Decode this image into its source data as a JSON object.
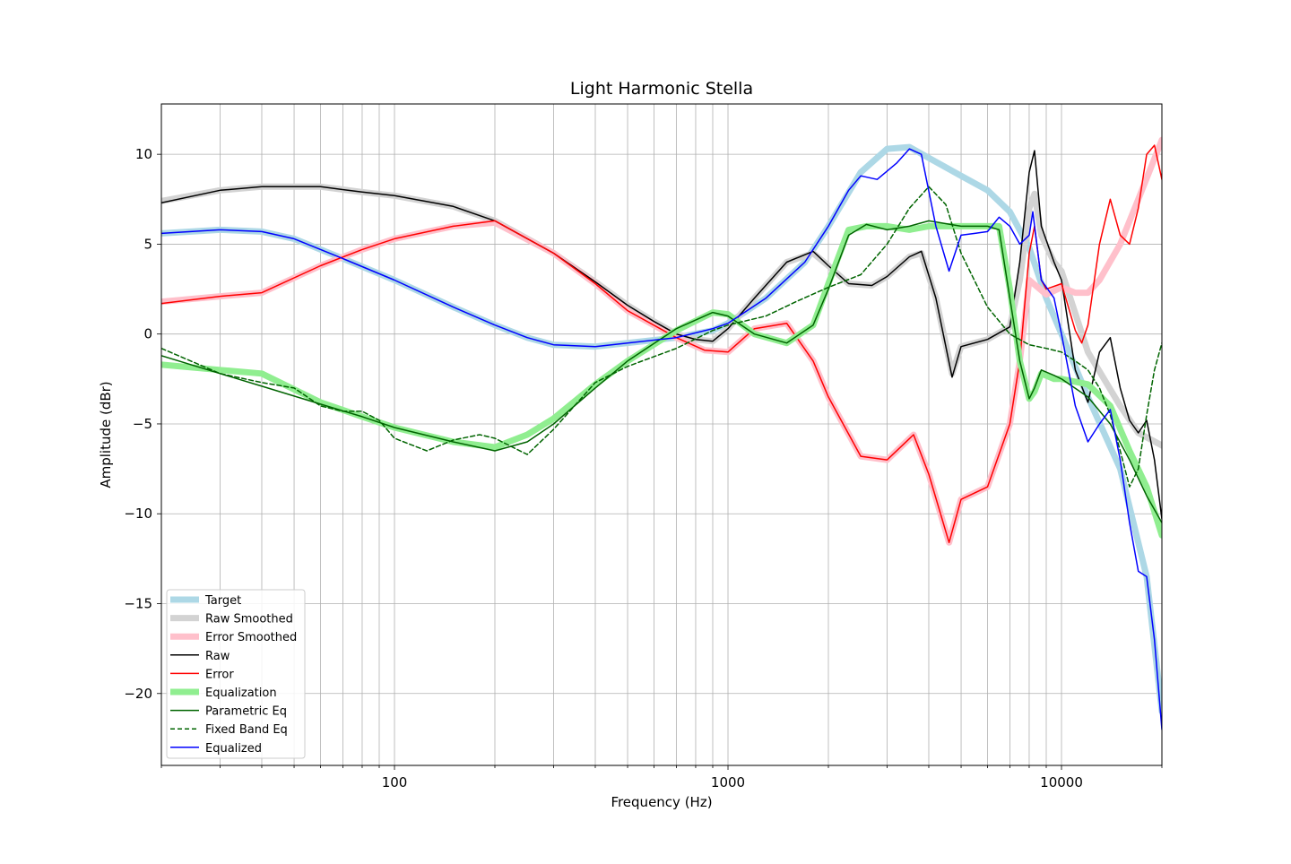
{
  "chart_data": {
    "type": "line",
    "title": "Light Harmonic Stella",
    "xlabel": "Frequency (Hz)",
    "ylabel": "Amplitude (dBr)",
    "x_scale": "log",
    "xlim": [
      20,
      20000
    ],
    "ylim": [
      -24,
      12.8
    ],
    "x_ticks": [
      {
        "value": 100,
        "label": "100"
      },
      {
        "value": 1000,
        "label": "1000"
      },
      {
        "value": 10000,
        "label": "10000"
      }
    ],
    "y_ticks": [
      {
        "value": 10,
        "label": "10"
      },
      {
        "value": 5,
        "label": "5"
      },
      {
        "value": 0,
        "label": "0"
      },
      {
        "value": -5,
        "label": "−5"
      },
      {
        "value": -10,
        "label": "−10"
      },
      {
        "value": -15,
        "label": "−15"
      },
      {
        "value": -20,
        "label": "−20"
      }
    ],
    "grid": true,
    "legend_position": "lower-left",
    "series": [
      {
        "name": "Target",
        "color": "#add8e6",
        "style": "thick",
        "x": [
          20,
          30,
          40,
          50,
          70,
          100,
          150,
          200,
          250,
          300,
          400,
          500,
          700,
          900,
          1000,
          1300,
          1700,
          2000,
          2500,
          3000,
          3500,
          4000,
          5000,
          6000,
          7000,
          8000,
          9000,
          10000,
          12000,
          15000,
          18000,
          20000
        ],
        "y": [
          5.6,
          5.8,
          5.7,
          5.3,
          4.2,
          3.0,
          1.5,
          0.5,
          -0.2,
          -0.6,
          -0.7,
          -0.5,
          -0.2,
          0.2,
          0.6,
          2.0,
          4.0,
          6.0,
          9.0,
          10.3,
          10.4,
          9.8,
          8.8,
          8.0,
          6.8,
          4.8,
          2.0,
          0.0,
          -3.5,
          -7.5,
          -13.5,
          -21.0
        ]
      },
      {
        "name": "Raw Smoothed",
        "color": "#d3d3d3",
        "style": "thick",
        "x": [
          20,
          30,
          40,
          60,
          80,
          100,
          150,
          200,
          300,
          400,
          500,
          600,
          700,
          800,
          900,
          1000,
          1200,
          1500,
          1800,
          2000,
          2300,
          2700,
          3000,
          3500,
          3800,
          4200,
          4700,
          5000,
          6000,
          7000,
          7500,
          8000,
          8300,
          8700,
          9500,
          10000,
          12000,
          15000,
          17000,
          20000
        ],
        "y": [
          7.4,
          8.0,
          8.2,
          8.2,
          7.9,
          7.7,
          7.1,
          6.3,
          4.5,
          2.9,
          1.6,
          0.7,
          0.0,
          -0.3,
          -0.4,
          0.3,
          2.0,
          4.0,
          4.5,
          3.8,
          2.8,
          2.7,
          3.2,
          4.3,
          4.5,
          2.0,
          -2.2,
          -0.7,
          -0.3,
          0.4,
          3.0,
          7.0,
          7.8,
          5.5,
          4.0,
          3.5,
          -1.0,
          -4.0,
          -5.5,
          -6.2
        ]
      },
      {
        "name": "Error Smoothed",
        "color": "#ffc0cb",
        "style": "thick",
        "x": [
          20,
          30,
          40,
          60,
          80,
          100,
          150,
          200,
          300,
          400,
          500,
          700,
          850,
          1000,
          1200,
          1500,
          1800,
          2000,
          2500,
          3000,
          3600,
          4000,
          4600,
          5000,
          6000,
          7000,
          7500,
          8000,
          9000,
          10000,
          11000,
          12000,
          13000,
          15000,
          17000,
          20000
        ],
        "y": [
          1.8,
          2.1,
          2.3,
          3.8,
          4.7,
          5.3,
          6.0,
          6.2,
          4.5,
          2.8,
          1.3,
          -0.2,
          -0.9,
          -1.0,
          0.3,
          0.6,
          -1.5,
          -3.5,
          -6.8,
          -7.0,
          -5.6,
          -7.8,
          -11.6,
          -9.2,
          -8.5,
          -5.0,
          -1.5,
          3.0,
          2.2,
          2.6,
          2.3,
          2.3,
          3.0,
          5.0,
          7.5,
          10.8
        ]
      },
      {
        "name": "Raw",
        "color": "#000000",
        "style": "thin",
        "x": [
          20,
          30,
          40,
          60,
          80,
          100,
          150,
          200,
          300,
          400,
          500,
          600,
          700,
          800,
          900,
          1000,
          1200,
          1500,
          1800,
          2000,
          2300,
          2700,
          3000,
          3500,
          3800,
          4200,
          4700,
          5000,
          6000,
          7000,
          7500,
          8000,
          8300,
          8700,
          9500,
          10000,
          11000,
          12000,
          13000,
          14000,
          15000,
          16000,
          17000,
          18000,
          19000,
          20000
        ],
        "y": [
          7.3,
          8.0,
          8.2,
          8.2,
          7.9,
          7.7,
          7.1,
          6.3,
          4.5,
          2.9,
          1.6,
          0.7,
          0.0,
          -0.3,
          -0.4,
          0.3,
          2.0,
          4.0,
          4.6,
          3.8,
          2.8,
          2.7,
          3.2,
          4.3,
          4.6,
          2.0,
          -2.4,
          -0.7,
          -0.3,
          0.4,
          4.0,
          9.0,
          10.2,
          6.0,
          4.0,
          3.0,
          -2.0,
          -3.8,
          -1.0,
          -0.2,
          -3.0,
          -4.8,
          -5.5,
          -4.8,
          -7.0,
          -10.3
        ]
      },
      {
        "name": "Error",
        "color": "#ff0000",
        "style": "thin",
        "x": [
          20,
          30,
          40,
          60,
          80,
          100,
          150,
          200,
          300,
          400,
          500,
          700,
          850,
          1000,
          1200,
          1500,
          1800,
          2000,
          2500,
          3000,
          3600,
          4000,
          4600,
          5000,
          6000,
          7000,
          7500,
          8000,
          8300,
          8700,
          9000,
          10000,
          11000,
          11500,
          12000,
          13000,
          14000,
          15000,
          16000,
          17000,
          18000,
          19000,
          20000
        ],
        "y": [
          1.7,
          2.1,
          2.3,
          3.8,
          4.7,
          5.3,
          6.0,
          6.3,
          4.5,
          2.8,
          1.3,
          -0.2,
          -0.9,
          -1.0,
          0.3,
          0.6,
          -1.5,
          -3.5,
          -6.8,
          -7.0,
          -5.6,
          -7.8,
          -11.6,
          -9.2,
          -8.5,
          -5.0,
          -1.5,
          4.5,
          6.0,
          3.0,
          2.5,
          2.8,
          0.2,
          -0.5,
          0.5,
          5.0,
          7.5,
          5.5,
          5.0,
          7.0,
          10.0,
          10.5,
          8.6
        ]
      },
      {
        "name": "Equalization",
        "color": "#90ee90",
        "style": "thick",
        "x": [
          20,
          30,
          40,
          60,
          80,
          100,
          150,
          200,
          250,
          300,
          400,
          500,
          700,
          900,
          1000,
          1200,
          1500,
          1800,
          2000,
          2300,
          2600,
          3000,
          3500,
          4000,
          5000,
          6000,
          6500,
          7000,
          7500,
          8000,
          8300,
          8700,
          9500,
          10000,
          12000,
          14000,
          16000,
          18000,
          20000
        ],
        "y": [
          -1.7,
          -2.0,
          -2.2,
          -3.8,
          -4.6,
          -5.2,
          -6.0,
          -6.3,
          -5.6,
          -4.7,
          -2.8,
          -1.5,
          0.2,
          1.2,
          1.1,
          0.0,
          -0.5,
          0.5,
          2.8,
          5.8,
          6.0,
          6.0,
          5.8,
          6.0,
          6.0,
          6.0,
          6.0,
          2.5,
          -1.5,
          -3.6,
          -3.2,
          -2.2,
          -2.5,
          -2.5,
          -2.8,
          -4.0,
          -6.5,
          -8.5,
          -11.2
        ]
      },
      {
        "name": "Parametric Eq",
        "color": "#006400",
        "style": "thin",
        "x": [
          20,
          30,
          40,
          60,
          80,
          100,
          150,
          200,
          250,
          300,
          400,
          500,
          700,
          900,
          1000,
          1200,
          1500,
          1800,
          2000,
          2300,
          2600,
          3000,
          3500,
          4000,
          5000,
          6000,
          6500,
          7000,
          7500,
          8000,
          8300,
          8700,
          9500,
          10000,
          12000,
          14000,
          16000,
          18000,
          20000
        ],
        "y": [
          -1.2,
          -2.2,
          -2.9,
          -3.9,
          -4.6,
          -5.2,
          -6.0,
          -6.5,
          -6.0,
          -5.0,
          -3.0,
          -1.5,
          0.3,
          1.2,
          1.0,
          0.0,
          -0.5,
          0.5,
          2.5,
          5.5,
          6.1,
          5.8,
          6.0,
          6.3,
          6.0,
          6.0,
          5.8,
          2.0,
          -1.5,
          -3.6,
          -3.0,
          -2.0,
          -2.3,
          -2.5,
          -3.5,
          -5.0,
          -7.0,
          -9.0,
          -10.5
        ]
      },
      {
        "name": "Fixed Band Eq",
        "color": "#006400",
        "style": "dashed",
        "x": [
          20,
          30,
          40,
          50,
          60,
          70,
          80,
          90,
          100,
          125,
          150,
          180,
          200,
          250,
          300,
          400,
          500,
          700,
          900,
          1000,
          1300,
          1600,
          2000,
          2500,
          3000,
          3500,
          4000,
          4500,
          5000,
          6000,
          7000,
          8000,
          9000,
          10000,
          11000,
          12000,
          13000,
          14000,
          15000,
          16000,
          17000,
          18000,
          19000,
          20000
        ],
        "y": [
          -0.8,
          -2.2,
          -2.7,
          -3.0,
          -4.0,
          -4.3,
          -4.3,
          -4.8,
          -5.8,
          -6.5,
          -5.9,
          -5.6,
          -5.8,
          -6.7,
          -5.3,
          -2.7,
          -1.8,
          -0.8,
          0.2,
          0.5,
          1.0,
          1.8,
          2.6,
          3.3,
          5.0,
          7.0,
          8.2,
          7.2,
          4.5,
          1.5,
          0.0,
          -0.6,
          -0.8,
          -1.0,
          -1.5,
          -2.0,
          -3.0,
          -4.5,
          -6.5,
          -8.5,
          -7.5,
          -4.5,
          -2.0,
          -0.5
        ]
      },
      {
        "name": "Equalized",
        "color": "#0000ff",
        "style": "thin",
        "x": [
          20,
          30,
          40,
          50,
          70,
          100,
          150,
          200,
          250,
          300,
          400,
          500,
          700,
          900,
          1000,
          1300,
          1700,
          2000,
          2300,
          2500,
          2800,
          3200,
          3500,
          3800,
          4200,
          4600,
          5000,
          5500,
          6000,
          6500,
          7000,
          7500,
          8000,
          8200,
          8700,
          9500,
          10000,
          11000,
          12000,
          13000,
          14000,
          15000,
          16000,
          17000,
          18000,
          19000,
          20000
        ],
        "y": [
          5.6,
          5.8,
          5.7,
          5.3,
          4.2,
          3.0,
          1.5,
          0.5,
          -0.2,
          -0.6,
          -0.7,
          -0.5,
          -0.2,
          0.3,
          0.6,
          2.0,
          4.0,
          6.0,
          8.0,
          8.8,
          8.6,
          9.5,
          10.3,
          10.0,
          6.0,
          3.5,
          5.5,
          5.6,
          5.7,
          6.5,
          6.0,
          5.0,
          5.5,
          6.8,
          3.0,
          2.0,
          0.0,
          -4.0,
          -6.0,
          -5.0,
          -4.2,
          -7.0,
          -10.5,
          -13.2,
          -13.5,
          -17.0,
          -22.0
        ]
      }
    ]
  }
}
